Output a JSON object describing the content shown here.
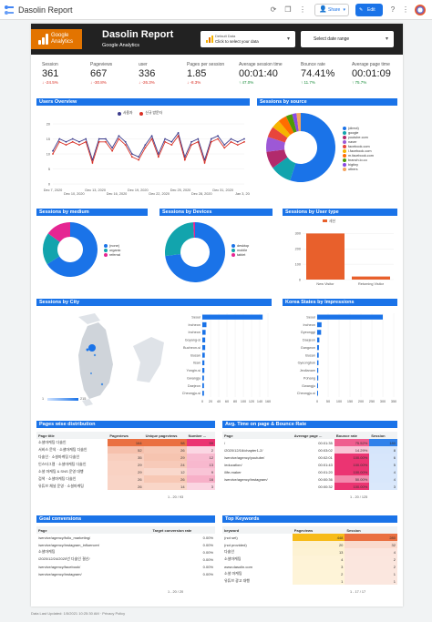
{
  "app": {
    "title": "Dasolin Report",
    "share_label": "Share",
    "edit_label": "Edit"
  },
  "header": {
    "ga_label_1": "Google",
    "ga_label_2": "Analytics",
    "title": "Dasolin Report",
    "subtitle": "Google Analytics",
    "filter_label": "Default Data",
    "filter_value": "Click to select your data",
    "date_range": "Select date range"
  },
  "kpis": [
    {
      "label": "Session",
      "value": "361",
      "delta": "↓ -24.5%",
      "trend": "down"
    },
    {
      "label": "Pageviews",
      "value": "667",
      "delta": "↓ -30.8%",
      "trend": "down"
    },
    {
      "label": "user",
      "value": "336",
      "delta": "↓ -26.3%",
      "trend": "down"
    },
    {
      "label": "Pages per session",
      "value": "1.85",
      "delta": "↓ -8.3%",
      "trend": "down"
    },
    {
      "label": "Average session time",
      "value": "00:01:40",
      "delta": "↑ 47.0%",
      "trend": "up"
    },
    {
      "label": "Bounce rate",
      "value": "74.41%",
      "delta": "↑ 11.7%",
      "trend": "up"
    },
    {
      "label": "Average page time",
      "value": "00:01:09",
      "delta": "↑ 75.7%",
      "trend": "up"
    }
  ],
  "sections": {
    "users_overview": "Users Overview",
    "sessions_source": "Sessions by source",
    "sessions_medium": "Sessions by medium",
    "sessions_devices": "Sessions by Devices",
    "sessions_user_type": "Sessions by User type",
    "sessions_city": "Sessions by City",
    "korea_states": "Korea States by Impressions",
    "pages_dist": "Pages wise distribution",
    "avg_time": "Avg. Time on page & Bounce Rate",
    "goal_conv": "Goal conversions",
    "top_keywords": "Top Keywords"
  },
  "chart_data": [
    {
      "type": "line",
      "title": "Users Overview",
      "legend": [
        "사용자",
        "신규 방문자"
      ],
      "x_ticks": [
        "Dec 7, 2020",
        "Dec 10, 2020",
        "Dec 13, 2020",
        "Dec 16, 2020",
        "Dec 19, 2020",
        "Dec 22, 2020",
        "Dec 25, 2020",
        "Dec 28, 2020",
        "Dec 31, 2020",
        "Jan 3, 2021"
      ],
      "y_ticks": [
        "0",
        "5",
        "10",
        "15",
        "20"
      ],
      "ylim": [
        0,
        20
      ],
      "series": [
        {
          "name": "사용자",
          "values": [
            11,
            15,
            14,
            15,
            14,
            15,
            8,
            15,
            15,
            12,
            16,
            14,
            10,
            9,
            13,
            16,
            10,
            15,
            14,
            17,
            9,
            14,
            15,
            8,
            15,
            16,
            13,
            15,
            14,
            15
          ]
        },
        {
          "name": "신규 방문자",
          "values": [
            10,
            14,
            13,
            14,
            13,
            14,
            7,
            14,
            14,
            11,
            15,
            13,
            9,
            8,
            12,
            15,
            9,
            14,
            13,
            16,
            8,
            13,
            14,
            7,
            14,
            15,
            12,
            14,
            13,
            14
          ]
        }
      ],
      "colors": [
        "#3c3c8c",
        "#d93025"
      ]
    },
    {
      "type": "pie",
      "title": "Sessions by source",
      "categories": [
        "(direct)",
        "google",
        "youtube.com",
        "naver",
        "facebook.com",
        "l.facebook.com",
        "m.facebook.com",
        "branch.io.co",
        "bigtiny",
        "others"
      ],
      "values": [
        55,
        10,
        8,
        7,
        5,
        4,
        4,
        3,
        2,
        2
      ],
      "colors": [
        "#1a73e8",
        "#12a4ad",
        "#b22a6c",
        "#9d58d6",
        "#e8453c",
        "#f6b400",
        "#ff6d00",
        "#4e9a06",
        "#8a4be2",
        "#f4a460"
      ]
    },
    {
      "type": "pie",
      "title": "Sessions by medium",
      "categories": [
        "(none)",
        "organic",
        "referral"
      ],
      "values": [
        66,
        19,
        15
      ],
      "colors": [
        "#1a73e8",
        "#12a4ad",
        "#e52592"
      ]
    },
    {
      "type": "pie",
      "title": "Sessions by Devices",
      "categories": [
        "desktop",
        "mobile",
        "tablet"
      ],
      "values": [
        73,
        26,
        1
      ],
      "colors": [
        "#1a73e8",
        "#12a4ad",
        "#e52592"
      ]
    },
    {
      "type": "bar",
      "title": "Sessions by User type",
      "legend": [
        "세션"
      ],
      "categories": [
        "New Visitor",
        "Returning Visitor"
      ],
      "values": [
        300,
        20
      ],
      "y_ticks": [
        "0",
        "100",
        "200",
        "300"
      ],
      "ylim": [
        0,
        320
      ],
      "color": "#e8602c"
    },
    {
      "type": "bar",
      "title": "Sessions by City",
      "categories": [
        "Seoul",
        "Incheon",
        "Incheon",
        "Goyang-si",
        "Bucheon-si",
        "Busan",
        "Ilsan",
        "Yongin-si",
        "Gwangju",
        "Daejeon",
        "Cheongju-si"
      ],
      "values": [
        147,
        10,
        8,
        7,
        7,
        6,
        5,
        5,
        4,
        4,
        4
      ],
      "x_ticks": [
        "0",
        "20",
        "40",
        "60",
        "80",
        "100",
        "120",
        "140",
        "160"
      ],
      "color": "#1a73e8",
      "map_legend": [
        "1",
        "215"
      ]
    },
    {
      "type": "bar",
      "title": "Korea States by Impressions",
      "categories": [
        "Seoul",
        "Incheon",
        "Gyeonggi",
        "Daejeon",
        "Gangwon",
        "Busan",
        "Gyeongbuk",
        "Jeollanam",
        "Pohang",
        "Gwangju",
        "Cheongju-si"
      ],
      "values": [
        300,
        20,
        18,
        10,
        8,
        7,
        6,
        5,
        5,
        4,
        4
      ],
      "x_ticks": [
        "0",
        "50",
        "100",
        "150",
        "200",
        "250",
        "300",
        "350"
      ],
      "color": "#1a73e8"
    }
  ],
  "pages_table": {
    "headers": [
      "Page title",
      "Pageviews",
      "Unique pageviews",
      "Number ..."
    ],
    "rows": [
      [
        "소셜마케팅 다솔인",
        "164",
        "98",
        "59"
      ],
      [
        "서비스 문의 · 소셜마케팅 다솔인",
        "52",
        "26",
        "2"
      ],
      [
        "다솔인 · 소셜마케팅 다솔인",
        "35",
        "29",
        "12"
      ],
      [
        "인스타그램 · 소셜마케팅 다솔인",
        "29",
        "24",
        "13"
      ],
      [
        "소셜 마케팅 & SNS 운영 대행",
        "29",
        "12",
        "9"
      ],
      [
        "검색 · 소셜마케팅 다솔인",
        "26",
        "26",
        "16"
      ],
      [
        "유튜브 채널 운영 · 소셜마케팅",
        "26",
        "14",
        "3"
      ]
    ],
    "pager": "1 - 20 / 93"
  },
  "avg_table": {
    "headers": [
      "Page",
      "Average page ...",
      "Bounce rate",
      "Session"
    ],
    "rows": [
      [
        "/",
        "00:01:35",
        "75.52%",
        "180"
      ],
      [
        "/2020/12/16/chapter1-2/",
        "00:03:02",
        "14.29%",
        "8"
      ],
      [
        "/service/agency/youtube/",
        "00:02:01",
        "100.00%",
        "6"
      ],
      [
        "/education/",
        "00:01:43",
        "100.00%",
        "5"
      ],
      [
        "/life-maker",
        "00:01:20",
        "100.00%",
        "4"
      ],
      [
        "/service/agency/instagram/",
        "00:00:36",
        "50.00%",
        "4"
      ],
      [
        "",
        "00:00:32",
        "100.00%",
        "3"
      ]
    ],
    "pager": "1 - 20 / 125"
  },
  "goal_table": {
    "headers": [
      "Page",
      "Target conversion rate"
    ],
    "rows": [
      [
        " /service/agency/follo_marketing/",
        "0.00%"
      ],
      [
        "/service/agency/instagram_influencer/",
        "0.00%"
      ],
      [
        "소셜마케팅",
        "0.00%"
      ],
      [
        "/2020/12/24/2020년 다솔인 결산/",
        "0.00%"
      ],
      [
        "/service/agency/facebook/",
        "0.00%"
      ],
      [
        "/service/agency/instagram/",
        "0.00%"
      ]
    ],
    "pager": "1 - 20 / 20"
  },
  "kw_table": {
    "headers": [
      "keyword",
      "Pageviews",
      "Session"
    ],
    "rows": [
      [
        "(not set)",
        "448",
        "280"
      ],
      [
        "(not provided)",
        "20",
        "32"
      ],
      [
        "다솔인",
        "13",
        "4"
      ],
      [
        "소셜마케팅",
        "4",
        "2"
      ],
      [
        "www.dasolin.com",
        "3",
        "2"
      ],
      [
        "소셜 마케팅",
        "2",
        "1"
      ],
      [
        "유튜브 광고 대행",
        "1",
        "1"
      ]
    ],
    "pager": "1 - 17 / 17"
  },
  "footer": "Data Last Updated: 1/5/2021 10:25:30 AM · Privacy Policy",
  "colors": {
    "accent": "#1a73e8",
    "header_bg": "#222222",
    "ga_orange": "#e37400"
  }
}
